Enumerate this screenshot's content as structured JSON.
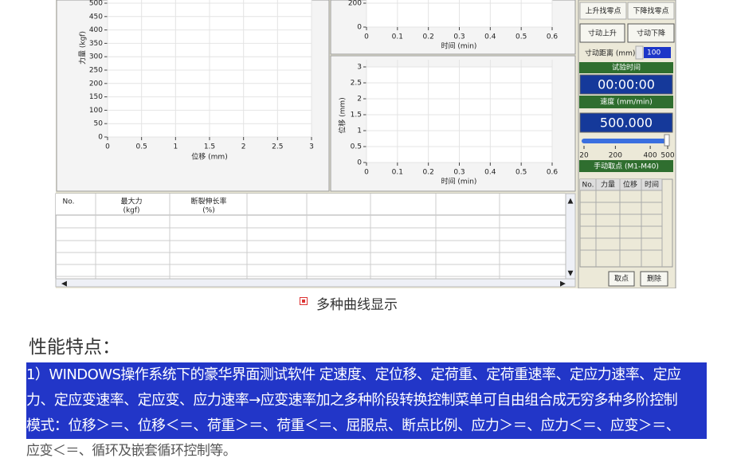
{
  "screenshot": {
    "force_chart": {
      "y_label": "力量 (kgf)",
      "x_label": "位移 (mm)",
      "yticks": [
        0,
        50,
        100,
        150,
        200,
        250,
        300,
        350,
        400,
        450,
        500
      ],
      "xticks": [
        0,
        0.5,
        1,
        1.5,
        2,
        2.5,
        3
      ]
    },
    "force_time_chart": {
      "x_label": "时间 (min)",
      "yticks": [
        0,
        200
      ],
      "xticks": [
        0,
        0.1,
        0.2,
        0.3,
        0.4,
        0.5,
        0.6
      ]
    },
    "displacement_time_chart": {
      "y_label": "位移 (mm)",
      "x_label": "时间 (min)",
      "yticks": [
        0,
        0.5,
        1,
        1.5,
        2,
        2.5,
        3
      ],
      "xticks": [
        0,
        0.1,
        0.2,
        0.3,
        0.4,
        0.5,
        0.6
      ]
    },
    "results_table": {
      "headers": [
        [
          "No."
        ],
        [
          "最大力",
          "(kgf)"
        ],
        [
          "断裂伸长率",
          "(%)"
        ]
      ]
    },
    "control_panel": {
      "zero_up": "上升找零点",
      "zero_down": "下降找零点",
      "jog_up": "寸动上升",
      "jog_down": "寸动下降",
      "jog_distance_label": "寸动距离 (mm)",
      "jog_distance": "100",
      "test_time_label": "试验时间",
      "test_time": "00:00:00",
      "speed_label": "速度 (mm/min)",
      "speed": "500.000",
      "speed_scale": [
        20,
        200,
        400,
        500
      ],
      "manual_points_label": "手动取点 (M1-M40)",
      "points_headers": [
        "No.",
        "力量",
        "位移",
        "时间"
      ],
      "take_point": "取点",
      "delete": "删除"
    }
  },
  "caption": "多种曲线显示",
  "features": {
    "heading": "性能特点：",
    "lines": [
      "1）WINDOWS操作系统下的豪华界面测试软件 定速度、定位移、定荷重、定荷重速率、定应力速率、定应",
      "力、定应变速率、定应变、应力速率→应变速率加之多种阶段转换控制菜单可自由组合成无穷多种多阶控制",
      "模式：位移＞＝、位移＜＝、荷重＞＝、荷重＜＝、屈服点、断点比例、应力＞＝、应力＜＝、应变＞＝、",
      "应变＜＝、循环及嵌套循环控制等。"
    ]
  }
}
